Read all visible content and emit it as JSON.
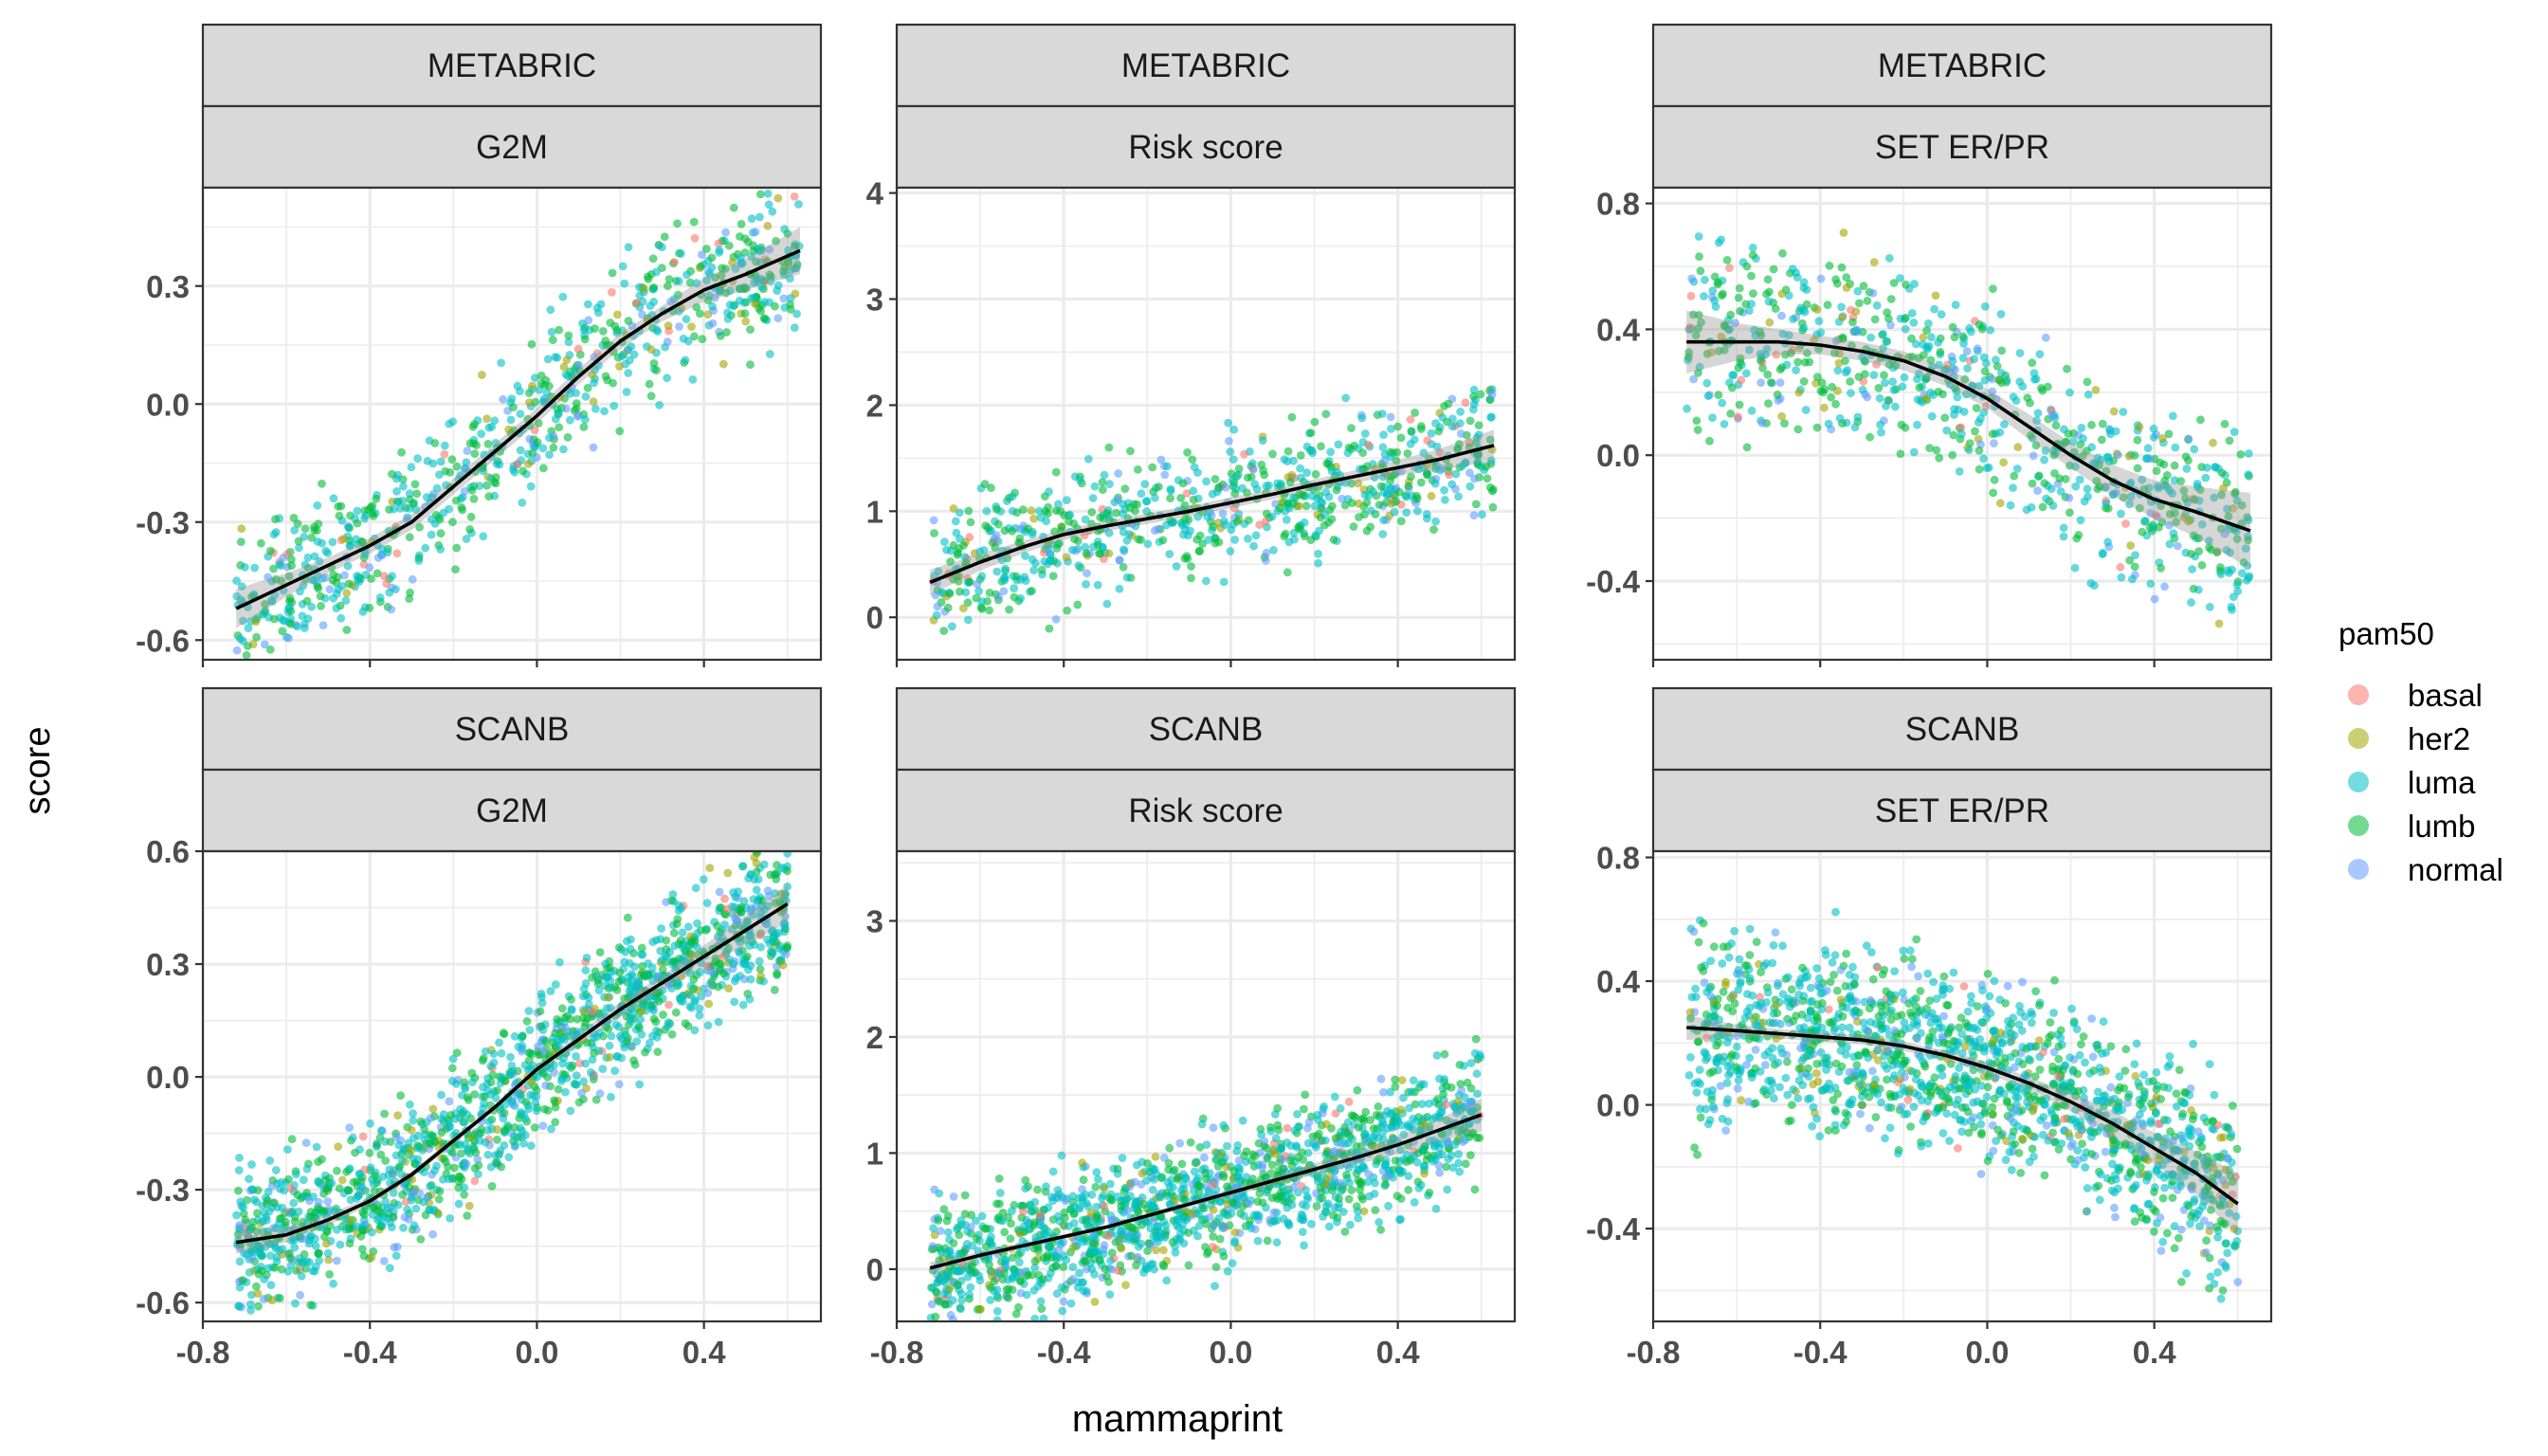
{
  "figure": {
    "y_axis_title": "score",
    "x_axis_title": "mammaprint"
  },
  "legend": {
    "title": "pam50",
    "items": [
      {
        "label": "basal",
        "color": "#F8766D"
      },
      {
        "label": "her2",
        "color": "#A3A500"
      },
      {
        "label": "luma",
        "color": "#00BFC4"
      },
      {
        "label": "lumb",
        "color": "#00BA38"
      },
      {
        "label": "normal",
        "color": "#619CFF"
      }
    ]
  },
  "chart_data": [
    {
      "type": "scatter",
      "dataset": "METABRIC",
      "measure": "G2M",
      "xlim": [
        -0.8,
        0.68
      ],
      "ylim": [
        -0.65,
        0.55
      ],
      "x_ticks": [
        -0.8,
        -0.4,
        0.0,
        0.4
      ],
      "x_tick_labels": [
        "-0.8",
        "-0.4",
        "0.0",
        "0.4"
      ],
      "y_ticks": [
        -0.6,
        -0.3,
        0.0,
        0.3
      ],
      "y_tick_labels": [
        "-0.6",
        "-0.3",
        "0.0",
        "0.3"
      ],
      "smooth": {
        "x": [
          -0.72,
          -0.6,
          -0.5,
          -0.4,
          -0.3,
          -0.2,
          -0.1,
          0.0,
          0.1,
          0.2,
          0.3,
          0.4,
          0.5,
          0.63
        ],
        "y": [
          -0.52,
          -0.46,
          -0.41,
          -0.36,
          -0.3,
          -0.21,
          -0.12,
          -0.03,
          0.07,
          0.16,
          0.23,
          0.29,
          0.33,
          0.39
        ],
        "band": [
          0.05,
          0.03,
          0.02,
          0.02,
          0.02,
          0.02,
          0.02,
          0.02,
          0.02,
          0.02,
          0.02,
          0.03,
          0.04,
          0.06
        ]
      },
      "points": {
        "n": 800,
        "seed": 11,
        "x_range": [
          -0.72,
          0.63
        ],
        "noise": 0.13,
        "mix": [
          0.03,
          0.05,
          0.45,
          0.4,
          0.07
        ]
      }
    },
    {
      "type": "scatter",
      "dataset": "METABRIC",
      "measure": "Risk score",
      "xlim": [
        -0.8,
        0.68
      ],
      "ylim": [
        -0.4,
        4.05
      ],
      "x_ticks": [
        -0.8,
        -0.4,
        0.0,
        0.4
      ],
      "x_tick_labels": [
        "-0.8",
        "-0.4",
        "0.0",
        "0.4"
      ],
      "y_ticks": [
        0,
        1,
        2,
        3,
        4
      ],
      "y_tick_labels": [
        "0",
        "1",
        "2",
        "3",
        "4"
      ],
      "smooth": {
        "x": [
          -0.72,
          -0.6,
          -0.5,
          -0.4,
          -0.3,
          -0.2,
          -0.1,
          0.0,
          0.1,
          0.2,
          0.3,
          0.4,
          0.5,
          0.63
        ],
        "y": [
          0.33,
          0.52,
          0.66,
          0.78,
          0.86,
          0.93,
          1.0,
          1.08,
          1.16,
          1.25,
          1.33,
          1.41,
          1.49,
          1.62
        ],
        "band": [
          0.12,
          0.08,
          0.06,
          0.05,
          0.05,
          0.05,
          0.05,
          0.05,
          0.05,
          0.05,
          0.06,
          0.07,
          0.1,
          0.15
        ]
      },
      "points": {
        "n": 800,
        "seed": 23,
        "x_range": [
          -0.72,
          0.63
        ],
        "noise": 0.42,
        "mix": [
          0.03,
          0.05,
          0.45,
          0.4,
          0.07
        ]
      }
    },
    {
      "type": "scatter",
      "dataset": "METABRIC",
      "measure": "SET ER/PR",
      "xlim": [
        -0.8,
        0.68
      ],
      "ylim": [
        -0.65,
        0.85
      ],
      "x_ticks": [
        -0.8,
        -0.4,
        0.0,
        0.4
      ],
      "x_tick_labels": [
        "-0.8",
        "-0.4",
        "0.0",
        "0.4"
      ],
      "y_ticks": [
        -0.4,
        0.0,
        0.4,
        0.8
      ],
      "y_tick_labels": [
        "-0.4",
        "0.0",
        "0.4",
        "0.8"
      ],
      "smooth": {
        "x": [
          -0.72,
          -0.6,
          -0.5,
          -0.4,
          -0.3,
          -0.2,
          -0.1,
          0.0,
          0.1,
          0.2,
          0.3,
          0.4,
          0.5,
          0.63
        ],
        "y": [
          0.36,
          0.36,
          0.36,
          0.35,
          0.33,
          0.3,
          0.25,
          0.18,
          0.09,
          0.0,
          -0.08,
          -0.14,
          -0.18,
          -0.24
        ],
        "band": [
          0.1,
          0.06,
          0.04,
          0.03,
          0.03,
          0.03,
          0.03,
          0.03,
          0.04,
          0.04,
          0.05,
          0.06,
          0.08,
          0.12
        ]
      },
      "points": {
        "n": 800,
        "seed": 37,
        "x_range": [
          -0.72,
          0.63
        ],
        "noise": 0.2,
        "mix": [
          0.03,
          0.05,
          0.45,
          0.4,
          0.07
        ]
      }
    },
    {
      "type": "scatter",
      "dataset": "SCANB",
      "measure": "G2M",
      "xlim": [
        -0.8,
        0.68
      ],
      "ylim": [
        -0.65,
        0.6
      ],
      "x_ticks": [
        -0.8,
        -0.4,
        0.0,
        0.4
      ],
      "x_tick_labels": [
        "-0.8",
        "-0.4",
        "0.0",
        "0.4"
      ],
      "y_ticks": [
        -0.6,
        -0.3,
        0.0,
        0.3,
        0.6
      ],
      "y_tick_labels": [
        "-0.6",
        "-0.3",
        "0.0",
        "0.3",
        "0.6"
      ],
      "smooth": {
        "x": [
          -0.72,
          -0.6,
          -0.5,
          -0.4,
          -0.3,
          -0.2,
          -0.1,
          0.0,
          0.1,
          0.2,
          0.3,
          0.4,
          0.5,
          0.6
        ],
        "y": [
          -0.44,
          -0.42,
          -0.38,
          -0.33,
          -0.26,
          -0.17,
          -0.08,
          0.02,
          0.1,
          0.18,
          0.25,
          0.32,
          0.39,
          0.46
        ],
        "band": [
          0.03,
          0.02,
          0.015,
          0.01,
          0.01,
          0.01,
          0.01,
          0.01,
          0.015,
          0.02,
          0.02,
          0.03,
          0.04,
          0.05
        ]
      },
      "points": {
        "n": 1500,
        "seed": 53,
        "x_range": [
          -0.72,
          0.6
        ],
        "noise": 0.13,
        "mix": [
          0.02,
          0.05,
          0.5,
          0.33,
          0.1
        ]
      }
    },
    {
      "type": "scatter",
      "dataset": "SCANB",
      "measure": "Risk score",
      "xlim": [
        -0.8,
        0.68
      ],
      "ylim": [
        -0.45,
        3.6
      ],
      "x_ticks": [
        -0.8,
        -0.4,
        0.0,
        0.4
      ],
      "x_tick_labels": [
        "-0.8",
        "-0.4",
        "0.0",
        "0.4"
      ],
      "y_ticks": [
        0,
        1,
        2,
        3
      ],
      "y_tick_labels": [
        "0",
        "1",
        "2",
        "3"
      ],
      "smooth": {
        "x": [
          -0.72,
          -0.6,
          -0.5,
          -0.4,
          -0.3,
          -0.2,
          -0.1,
          0.0,
          0.1,
          0.2,
          0.3,
          0.4,
          0.5,
          0.6
        ],
        "y": [
          0.01,
          0.12,
          0.2,
          0.28,
          0.36,
          0.46,
          0.56,
          0.66,
          0.76,
          0.86,
          0.96,
          1.07,
          1.2,
          1.33
        ],
        "band": [
          0.05,
          0.03,
          0.02,
          0.02,
          0.02,
          0.02,
          0.03,
          0.03,
          0.04,
          0.05,
          0.06,
          0.08,
          0.1,
          0.14
        ]
      },
      "points": {
        "n": 1500,
        "seed": 71,
        "x_range": [
          -0.72,
          0.6
        ],
        "noise": 0.38,
        "mix": [
          0.02,
          0.05,
          0.5,
          0.33,
          0.1
        ]
      }
    },
    {
      "type": "scatter",
      "dataset": "SCANB",
      "measure": "SET ER/PR",
      "xlim": [
        -0.8,
        0.68
      ],
      "ylim": [
        -0.7,
        0.82
      ],
      "x_ticks": [
        -0.8,
        -0.4,
        0.0,
        0.4
      ],
      "x_tick_labels": [
        "-0.8",
        "-0.4",
        "0.0",
        "0.4"
      ],
      "y_ticks": [
        -0.4,
        0.0,
        0.4,
        0.8
      ],
      "y_tick_labels": [
        "-0.4",
        "0.0",
        "0.4",
        "0.8"
      ],
      "smooth": {
        "x": [
          -0.72,
          -0.6,
          -0.5,
          -0.4,
          -0.3,
          -0.2,
          -0.1,
          0.0,
          0.1,
          0.2,
          0.3,
          0.4,
          0.5,
          0.6
        ],
        "y": [
          0.25,
          0.24,
          0.23,
          0.22,
          0.21,
          0.19,
          0.16,
          0.12,
          0.07,
          0.01,
          -0.06,
          -0.14,
          -0.22,
          -0.32
        ],
        "band": [
          0.04,
          0.02,
          0.015,
          0.015,
          0.015,
          0.015,
          0.015,
          0.02,
          0.02,
          0.03,
          0.04,
          0.05,
          0.07,
          0.1
        ]
      },
      "points": {
        "n": 1500,
        "seed": 97,
        "x_range": [
          -0.72,
          0.6
        ],
        "noise": 0.21,
        "mix": [
          0.02,
          0.05,
          0.5,
          0.33,
          0.1
        ]
      }
    }
  ]
}
